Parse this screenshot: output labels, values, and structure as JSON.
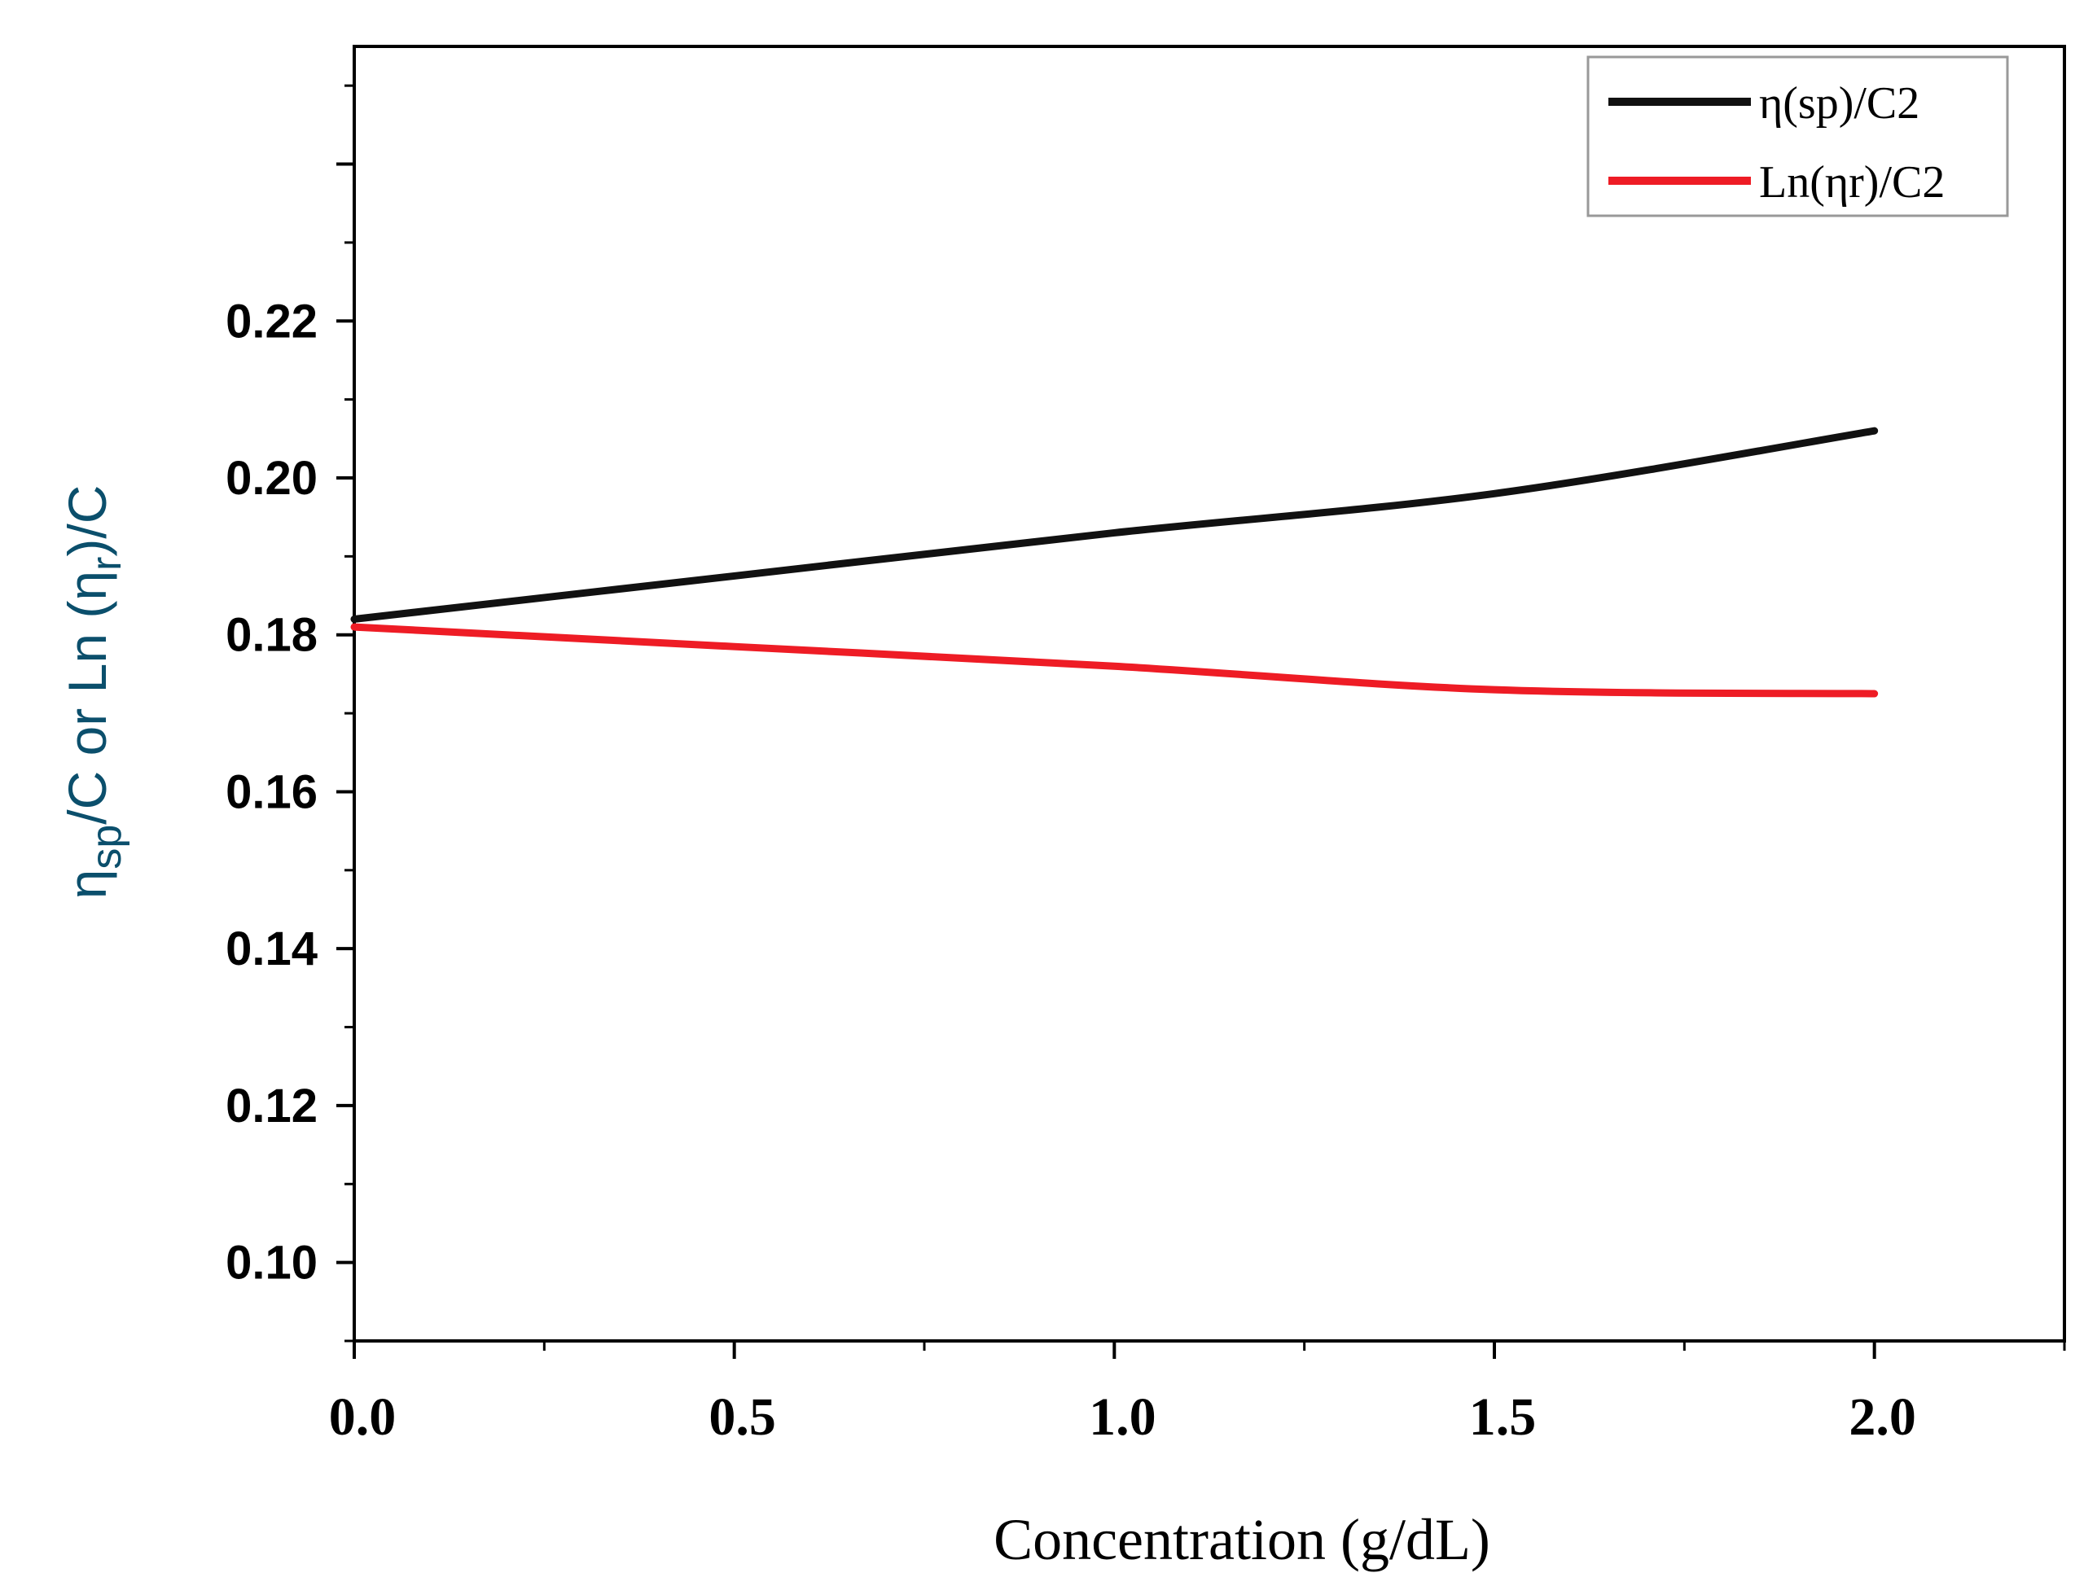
{
  "chart_data": {
    "type": "line",
    "title": "",
    "xlabel": "Concentration (g/dL)",
    "ylabel_parts": {
      "eta1": "η",
      "sub1": "sp",
      "mid": "/C or Ln (",
      "eta2": "η",
      "sub2": "r",
      "end": ")/C"
    },
    "xlim": [
      0.0,
      2.25
    ],
    "ylim": [
      0.09,
      0.255
    ],
    "x_ticks": [
      0.0,
      0.5,
      1.0,
      1.5,
      2.0
    ],
    "x_tick_labels": [
      "0.0",
      "0.5",
      "1.0",
      "1.5",
      "2.0"
    ],
    "y_ticks": [
      0.1,
      0.12,
      0.14,
      0.16,
      0.18,
      0.2,
      0.22
    ],
    "y_tick_labels": [
      "0.10",
      "0.12",
      "0.14",
      "0.16",
      "0.18",
      "0.20",
      "0.22"
    ],
    "legend_position": "top-right",
    "series": [
      {
        "name": "η(sp)/C2",
        "color": "#111111",
        "x": [
          0.0,
          0.5,
          1.0,
          1.5,
          2.0
        ],
        "values": [
          0.182,
          0.1875,
          0.193,
          0.198,
          0.206
        ]
      },
      {
        "name": "Ln(ηr)/C2",
        "color": "#ee1c25",
        "x": [
          0.0,
          0.5,
          1.0,
          1.5,
          2.0
        ],
        "values": [
          0.181,
          0.1785,
          0.176,
          0.173,
          0.1725
        ]
      }
    ]
  }
}
